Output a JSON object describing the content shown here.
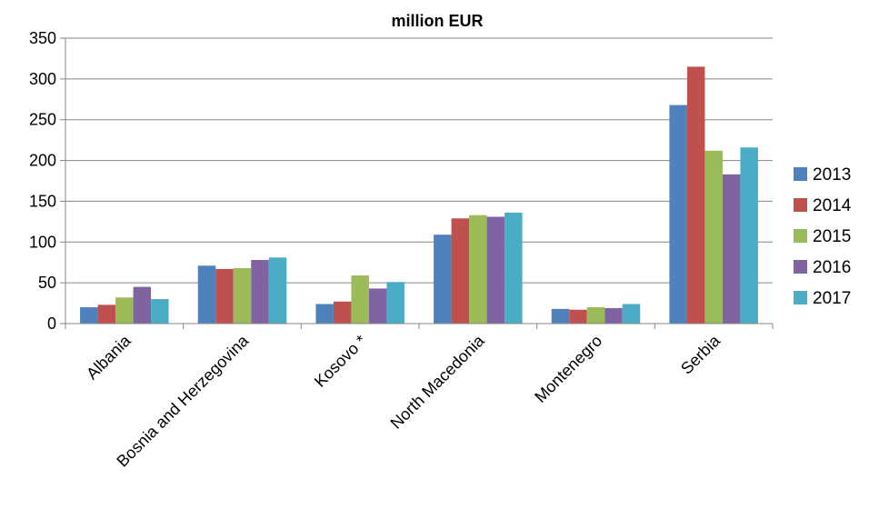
{
  "chart_data": {
    "type": "bar",
    "title": "million EUR",
    "xlabel": "",
    "ylabel": "",
    "ylim": [
      0,
      350
    ],
    "yticks": [
      0,
      50,
      100,
      150,
      200,
      250,
      300,
      350
    ],
    "grid": true,
    "legend_position": "right",
    "categories": [
      "Albania",
      "Bosnia and Herzegovina",
      "Kosovo *",
      "North Macedonia",
      "Montenegro",
      "Serbia"
    ],
    "series": [
      {
        "name": "2013",
        "color": "#4F81BD",
        "values": [
          20,
          71,
          24,
          109,
          18,
          268
        ]
      },
      {
        "name": "2014",
        "color": "#C0504D",
        "values": [
          23,
          67,
          27,
          129,
          17,
          315
        ]
      },
      {
        "name": "2015",
        "color": "#9BBB59",
        "values": [
          32,
          68,
          59,
          133,
          20,
          212
        ]
      },
      {
        "name": "2016",
        "color": "#8064A2",
        "values": [
          45,
          78,
          43,
          131,
          19,
          183
        ]
      },
      {
        "name": "2017",
        "color": "#4BACC6",
        "values": [
          30,
          81,
          51,
          136,
          24,
          216
        ]
      }
    ]
  }
}
